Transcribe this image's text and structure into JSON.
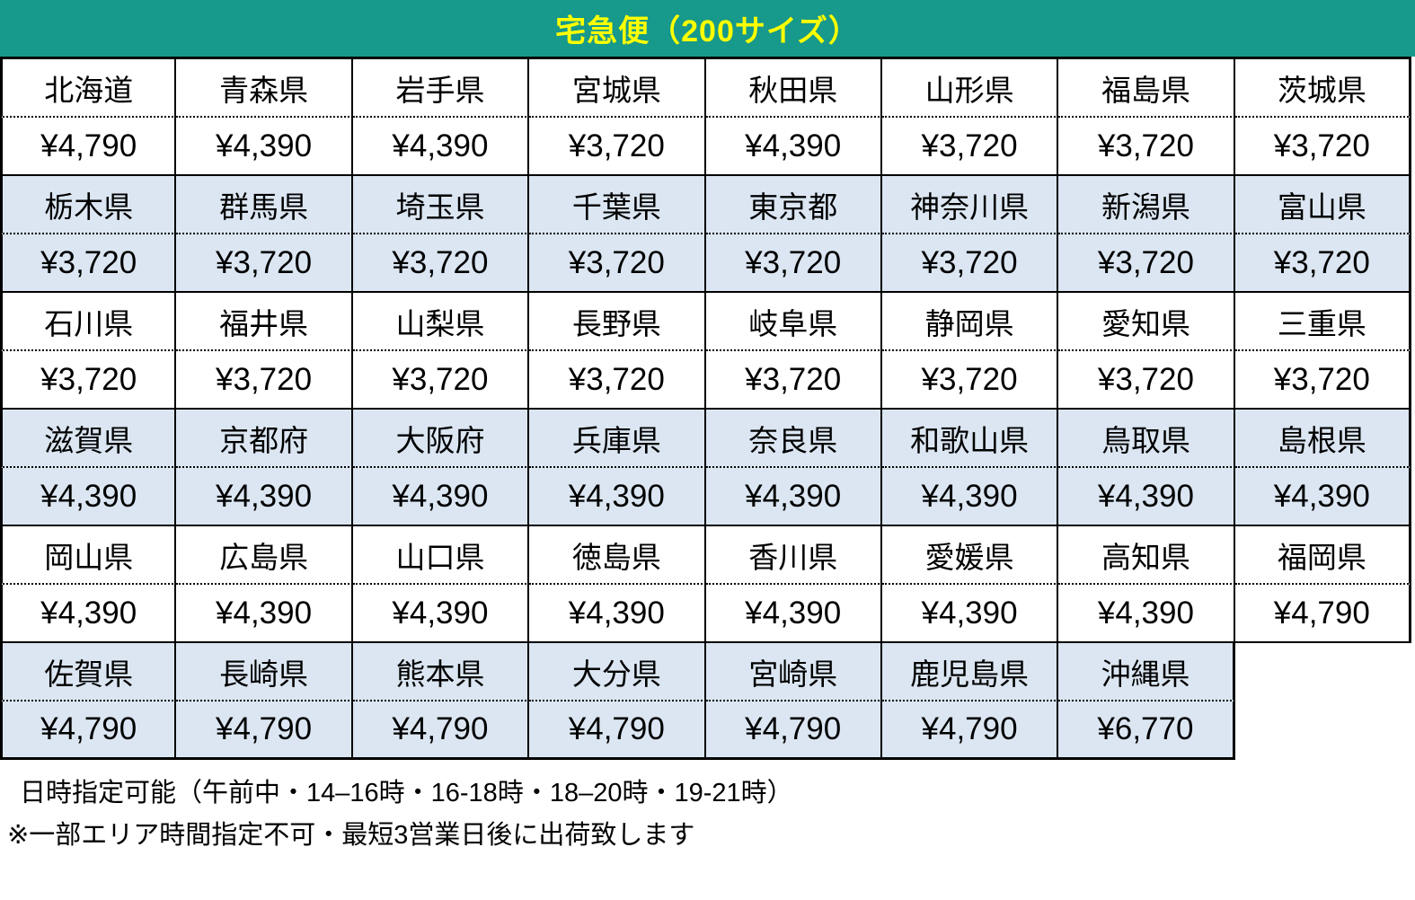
{
  "title": "宅急便（200サイズ）",
  "colors": {
    "header_bg": "#17998b",
    "header_text": "#ffff00",
    "row_bg": "#ffffff",
    "row_alt_bg": "#dbe6f2",
    "border": "#000000"
  },
  "table": {
    "rows": [
      {
        "shaded": false,
        "cells": [
          {
            "name": "北海道",
            "price": "¥4,790"
          },
          {
            "name": "青森県",
            "price": "¥4,390"
          },
          {
            "name": "岩手県",
            "price": "¥4,390"
          },
          {
            "name": "宮城県",
            "price": "¥3,720"
          },
          {
            "name": "秋田県",
            "price": "¥4,390"
          },
          {
            "name": "山形県",
            "price": "¥3,720"
          },
          {
            "name": "福島県",
            "price": "¥3,720"
          },
          {
            "name": "茨城県",
            "price": "¥3,720"
          }
        ]
      },
      {
        "shaded": true,
        "cells": [
          {
            "name": "栃木県",
            "price": "¥3,720"
          },
          {
            "name": "群馬県",
            "price": "¥3,720"
          },
          {
            "name": "埼玉県",
            "price": "¥3,720"
          },
          {
            "name": "千葉県",
            "price": "¥3,720"
          },
          {
            "name": "東京都",
            "price": "¥3,720"
          },
          {
            "name": "神奈川県",
            "price": "¥3,720"
          },
          {
            "name": "新潟県",
            "price": "¥3,720"
          },
          {
            "name": "富山県",
            "price": "¥3,720"
          }
        ]
      },
      {
        "shaded": false,
        "cells": [
          {
            "name": "石川県",
            "price": "¥3,720"
          },
          {
            "name": "福井県",
            "price": "¥3,720"
          },
          {
            "name": "山梨県",
            "price": "¥3,720"
          },
          {
            "name": "長野県",
            "price": "¥3,720"
          },
          {
            "name": "岐阜県",
            "price": "¥3,720"
          },
          {
            "name": "静岡県",
            "price": "¥3,720"
          },
          {
            "name": "愛知県",
            "price": "¥3,720"
          },
          {
            "name": "三重県",
            "price": "¥3,720"
          }
        ]
      },
      {
        "shaded": true,
        "cells": [
          {
            "name": "滋賀県",
            "price": "¥4,390"
          },
          {
            "name": "京都府",
            "price": "¥4,390"
          },
          {
            "name": "大阪府",
            "price": "¥4,390"
          },
          {
            "name": "兵庫県",
            "price": "¥4,390"
          },
          {
            "name": "奈良県",
            "price": "¥4,390"
          },
          {
            "name": "和歌山県",
            "price": "¥4,390"
          },
          {
            "name": "鳥取県",
            "price": "¥4,390"
          },
          {
            "name": "島根県",
            "price": "¥4,390"
          }
        ]
      },
      {
        "shaded": false,
        "cells": [
          {
            "name": "岡山県",
            "price": "¥4,390"
          },
          {
            "name": "広島県",
            "price": "¥4,390"
          },
          {
            "name": "山口県",
            "price": "¥4,390"
          },
          {
            "name": "徳島県",
            "price": "¥4,390"
          },
          {
            "name": "香川県",
            "price": "¥4,390"
          },
          {
            "name": "愛媛県",
            "price": "¥4,390"
          },
          {
            "name": "高知県",
            "price": "¥4,390"
          },
          {
            "name": "福岡県",
            "price": "¥4,790"
          }
        ]
      },
      {
        "shaded": true,
        "cells": [
          {
            "name": "佐賀県",
            "price": "¥4,790"
          },
          {
            "name": "長崎県",
            "price": "¥4,790"
          },
          {
            "name": "熊本県",
            "price": "¥4,790"
          },
          {
            "name": "大分県",
            "price": "¥4,790"
          },
          {
            "name": "宮崎県",
            "price": "¥4,790"
          },
          {
            "name": "鹿児島県",
            "price": "¥4,790"
          },
          {
            "name": "沖縄県",
            "price": "¥6,770"
          },
          null
        ]
      }
    ]
  },
  "footer": {
    "line1": "日時指定可能（午前中・14–16時・16-18時・18–20時・19-21時）",
    "line2": "※一部エリア時間指定不可・最短3営業日後に出荷致します"
  }
}
